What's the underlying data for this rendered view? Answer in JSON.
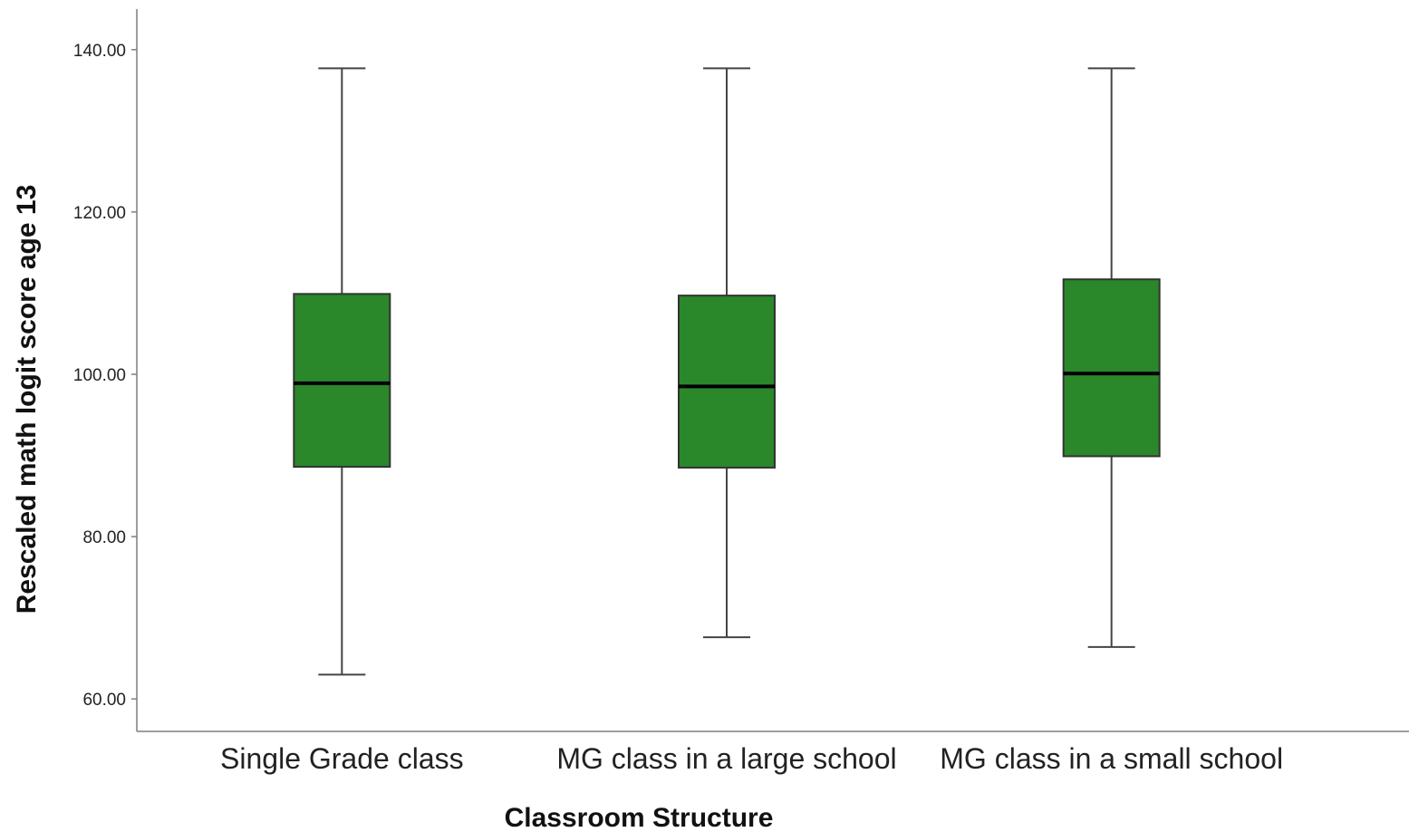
{
  "chart_data": {
    "type": "boxplot",
    "title": "",
    "xlabel": "Classroom Structure",
    "ylabel": "Rescaled math logit score age 13",
    "ylim": [
      56,
      145
    ],
    "yticks": [
      60,
      80,
      100,
      120,
      140
    ],
    "ytick_labels": [
      "60.00",
      "80.00",
      "100.00",
      "120.00",
      "140.00"
    ],
    "grid": false,
    "legend": "none",
    "box_color": "#2a872a",
    "categories": [
      "Single Grade class",
      "MG class in a large school",
      "MG class in a small school"
    ],
    "series": [
      {
        "stats": [
          {
            "min": 63.0,
            "q1": 88.6,
            "median": 98.9,
            "q3": 109.9,
            "max": 137.7
          },
          {
            "min": 67.6,
            "q1": 88.5,
            "median": 98.5,
            "q3": 109.7,
            "max": 137.7
          },
          {
            "min": 66.4,
            "q1": 89.9,
            "median": 100.1,
            "q3": 111.7,
            "max": 137.7
          }
        ]
      }
    ]
  }
}
